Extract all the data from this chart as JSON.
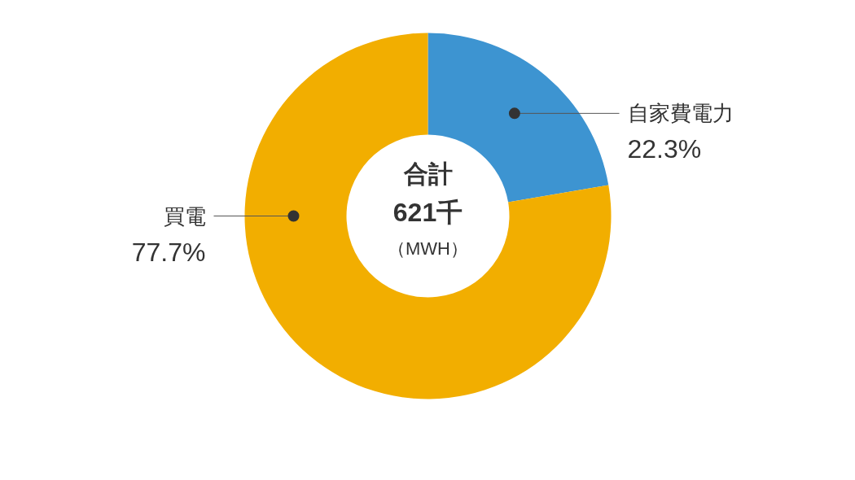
{
  "chart_data": {
    "type": "donut",
    "categories": [
      "自家費電力",
      "買電"
    ],
    "values": [
      22.3,
      77.7
    ],
    "colors": [
      "#3d94d1",
      "#f2ae00"
    ],
    "value_labels": [
      "22.3%",
      "77.7%"
    ],
    "annotations": [
      "合計",
      "621千",
      "（MWH）"
    ]
  }
}
